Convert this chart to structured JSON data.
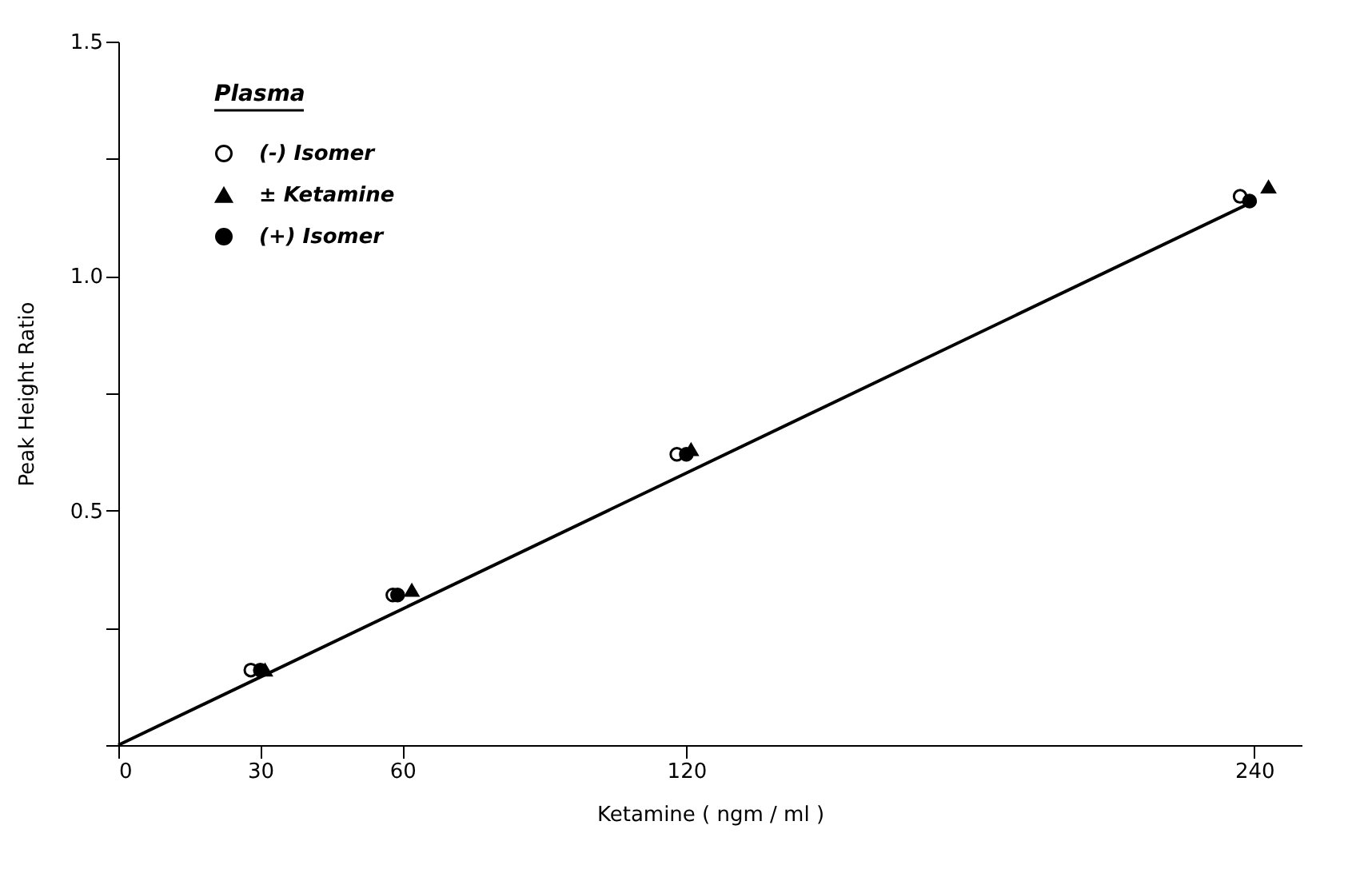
{
  "chart_data": {
    "type": "scatter",
    "xlabel": "Ketamine ( ngm / ml )",
    "ylabel": "Peak Height Ratio",
    "legend_title": "Plasma",
    "legend": "top left",
    "grid": false,
    "xlim": [
      0,
      250
    ],
    "xticks": [
      0,
      30,
      60,
      120,
      240
    ],
    "ylim": [
      0,
      1.5
    ],
    "yticks": [
      {
        "value": 0,
        "label": null
      },
      {
        "value": 0.25,
        "label": null
      },
      {
        "value": 0.5,
        "label": "0.5"
      },
      {
        "value": 0.75,
        "label": null
      },
      {
        "value": 1.0,
        "label": "1.0"
      },
      {
        "value": 1.25,
        "label": null
      },
      {
        "value": 1.5,
        "label": "1.5"
      }
    ],
    "series": [
      {
        "name": "(-) Isomer",
        "marker": "circle",
        "color": "#ffffff",
        "x": [
          28,
          58,
          118,
          237
        ],
        "values": [
          0.16,
          0.32,
          0.62,
          1.17
        ]
      },
      {
        "name": "± Ketamine",
        "marker": "triangle",
        "color": "#000000",
        "x": [
          31,
          62,
          121,
          243
        ],
        "values": [
          0.16,
          0.33,
          0.63,
          1.19
        ]
      },
      {
        "name": "(+) Isomer",
        "marker": "circle",
        "color": "#000000",
        "x": [
          30,
          59,
          120,
          239
        ],
        "values": [
          0.16,
          0.32,
          0.62,
          1.16
        ]
      },
      {
        "type": "line",
        "marker": "none",
        "line_style": "solid",
        "color": "#000000",
        "x": [
          0,
          240
        ],
        "values": [
          0,
          1.16
        ]
      }
    ]
  }
}
